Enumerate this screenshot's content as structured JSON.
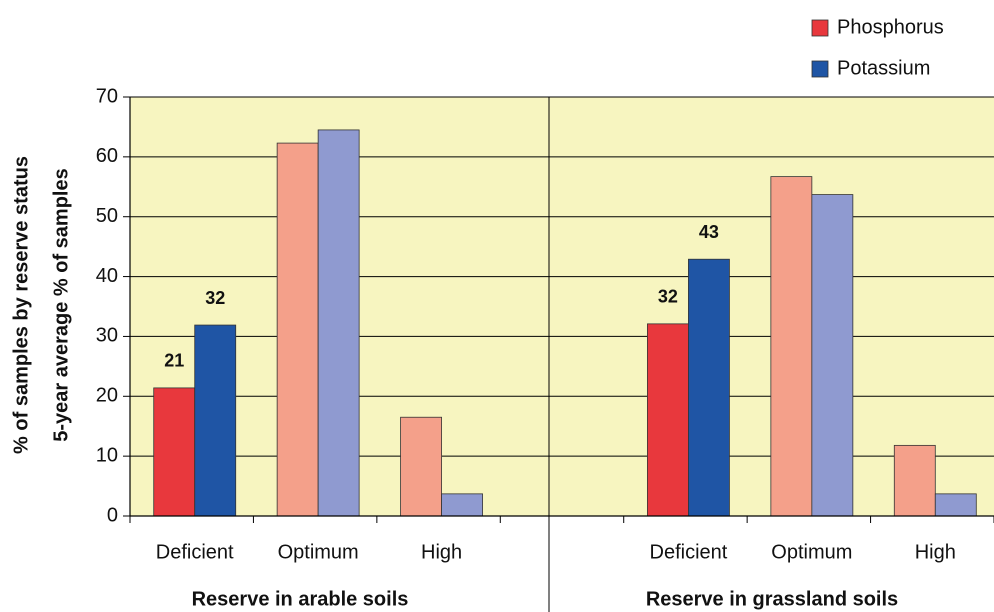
{
  "chart_data": {
    "type": "bar",
    "y_label_lines": [
      "% of samples by reserve status",
      "5-year average % of samples"
    ],
    "group_labels": [
      "Reserve in arable soils",
      "Reserve in grassland soils"
    ],
    "categories": [
      "Deficient",
      "Optimum",
      "High",
      null,
      "Deficient",
      "Optimum",
      "High"
    ],
    "series": [
      {
        "name": "Phosphorus",
        "color": "#e8383d",
        "colors": [
          "#e8383d",
          "#f4a08a",
          "#f4a08a",
          null,
          "#e8383d",
          "#f4a08a",
          "#f4a08a"
        ],
        "values": [
          21.4,
          62.3,
          16.5,
          null,
          32.1,
          56.7,
          11.8
        ],
        "value_labels": [
          "21",
          null,
          null,
          null,
          "32",
          null,
          null
        ]
      },
      {
        "name": "Potassium",
        "color": "#1f55a5",
        "colors": [
          "#1f55a5",
          "#8f9ad0",
          "#8f9ad0",
          null,
          "#1f55a5",
          "#8f9ad0",
          "#8f9ad0"
        ],
        "values": [
          31.9,
          64.5,
          3.7,
          null,
          42.9,
          53.7,
          3.7
        ],
        "value_labels": [
          "32",
          null,
          null,
          null,
          "43",
          null,
          null
        ]
      }
    ],
    "ylim": [
      0,
      70
    ],
    "yticks": [
      0,
      10,
      20,
      30,
      40,
      50,
      60,
      70
    ],
    "grid": true,
    "background": "#f7f5c0",
    "legend": "top-right"
  }
}
